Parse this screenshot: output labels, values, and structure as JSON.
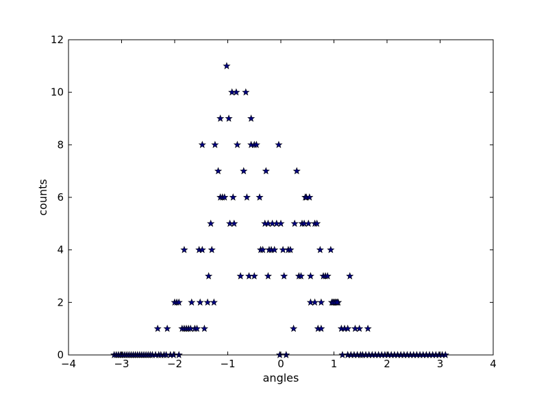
{
  "chart_data": {
    "type": "scatter",
    "xlabel": "angles",
    "ylabel": "counts",
    "xlim": [
      -4,
      4
    ],
    "ylim": [
      0,
      12
    ],
    "xticks": [
      -4,
      -3,
      -2,
      -1,
      0,
      1,
      2,
      3,
      4
    ],
    "yticks": [
      0,
      2,
      4,
      6,
      8,
      10,
      12
    ],
    "marker": "star",
    "colors": {
      "marker_fill": "#000080",
      "marker_edge": "#000000",
      "axes": "#000000"
    },
    "grid": false,
    "legend": "none",
    "x": [
      -3.14,
      -3.1,
      -3.06,
      -3.02,
      -2.98,
      -2.94,
      -2.9,
      -2.86,
      -2.82,
      -2.78,
      -2.74,
      -2.7,
      -2.66,
      -2.62,
      -2.58,
      -2.54,
      -2.5,
      -2.46,
      -2.42,
      -2.36,
      -2.3,
      -2.26,
      -2.2,
      -2.16,
      -2.08,
      -2.02,
      -1.92,
      -2.32,
      -2.14,
      -1.86,
      -1.82,
      -1.78,
      -1.74,
      -1.7,
      -1.62,
      -1.58,
      -1.44,
      -2.0,
      -1.96,
      -1.92,
      -1.68,
      -1.52,
      -1.38,
      -1.26,
      -1.36,
      -0.76,
      -0.6,
      -0.5,
      -0.24,
      0.06,
      0.34,
      0.38,
      0.56,
      0.8,
      0.84,
      0.88,
      1.3,
      -1.82,
      -1.54,
      -1.48,
      -1.3,
      -0.38,
      -0.34,
      -0.22,
      -0.18,
      -0.12,
      0.04,
      0.14,
      0.18,
      0.74,
      0.94,
      -1.32,
      -0.96,
      -0.88,
      -0.3,
      -0.24,
      -0.16,
      -0.08,
      0.0,
      0.26,
      0.4,
      0.44,
      0.52,
      0.64,
      0.68,
      -1.14,
      -1.1,
      -1.06,
      -0.9,
      -0.64,
      -0.4,
      0.46,
      0.48,
      0.54,
      -1.18,
      -0.7,
      -0.28,
      0.3,
      -1.48,
      -1.24,
      -0.82,
      -0.56,
      -0.5,
      -0.46,
      -0.04,
      -1.14,
      -0.98,
      -0.56,
      -0.92,
      -0.84,
      -0.66,
      -1.02,
      -0.02,
      0.1,
      1.16,
      1.26,
      1.32,
      1.38,
      1.44,
      1.5,
      1.54,
      1.6,
      1.66,
      1.72,
      1.78,
      1.84,
      1.9,
      1.96,
      2.02,
      2.08,
      2.14,
      2.2,
      2.26,
      2.32,
      2.38,
      2.44,
      2.5,
      2.56,
      2.62,
      2.68,
      2.74,
      2.8,
      2.86,
      2.92,
      2.98,
      3.04,
      3.1,
      0.24,
      0.7,
      0.76,
      1.14,
      1.2,
      1.26,
      1.4,
      1.48,
      1.64,
      0.56,
      0.64,
      0.76,
      0.96,
      1.0,
      1.04,
      1.08,
      0.98,
      1.02,
      1.06
    ],
    "y": [
      0,
      0,
      0,
      0,
      0,
      0,
      0,
      0,
      0,
      0,
      0,
      0,
      0,
      0,
      0,
      0,
      0,
      0,
      0,
      0,
      0,
      0,
      0,
      0,
      0,
      0,
      0,
      1,
      1,
      1,
      1,
      1,
      1,
      1,
      1,
      1,
      1,
      2,
      2,
      2,
      2,
      2,
      2,
      2,
      3,
      3,
      3,
      3,
      3,
      3,
      3,
      3,
      3,
      3,
      3,
      3,
      3,
      4,
      4,
      4,
      4,
      4,
      4,
      4,
      4,
      4,
      4,
      4,
      4,
      4,
      4,
      5,
      5,
      5,
      5,
      5,
      5,
      5,
      5,
      5,
      5,
      5,
      5,
      5,
      5,
      6,
      6,
      6,
      6,
      6,
      6,
      6,
      6,
      6,
      7,
      7,
      7,
      7,
      8,
      8,
      8,
      8,
      8,
      8,
      8,
      9,
      9,
      9,
      10,
      10,
      10,
      11,
      0,
      0,
      0,
      0,
      0,
      0,
      0,
      0,
      0,
      0,
      0,
      0,
      0,
      0,
      0,
      0,
      0,
      0,
      0,
      0,
      0,
      0,
      0,
      0,
      0,
      0,
      0,
      0,
      0,
      0,
      0,
      0,
      0,
      0,
      0,
      1,
      1,
      1,
      1,
      1,
      1,
      1,
      1,
      1,
      2,
      2,
      2,
      2,
      2,
      2,
      2,
      2,
      2,
      2
    ]
  }
}
